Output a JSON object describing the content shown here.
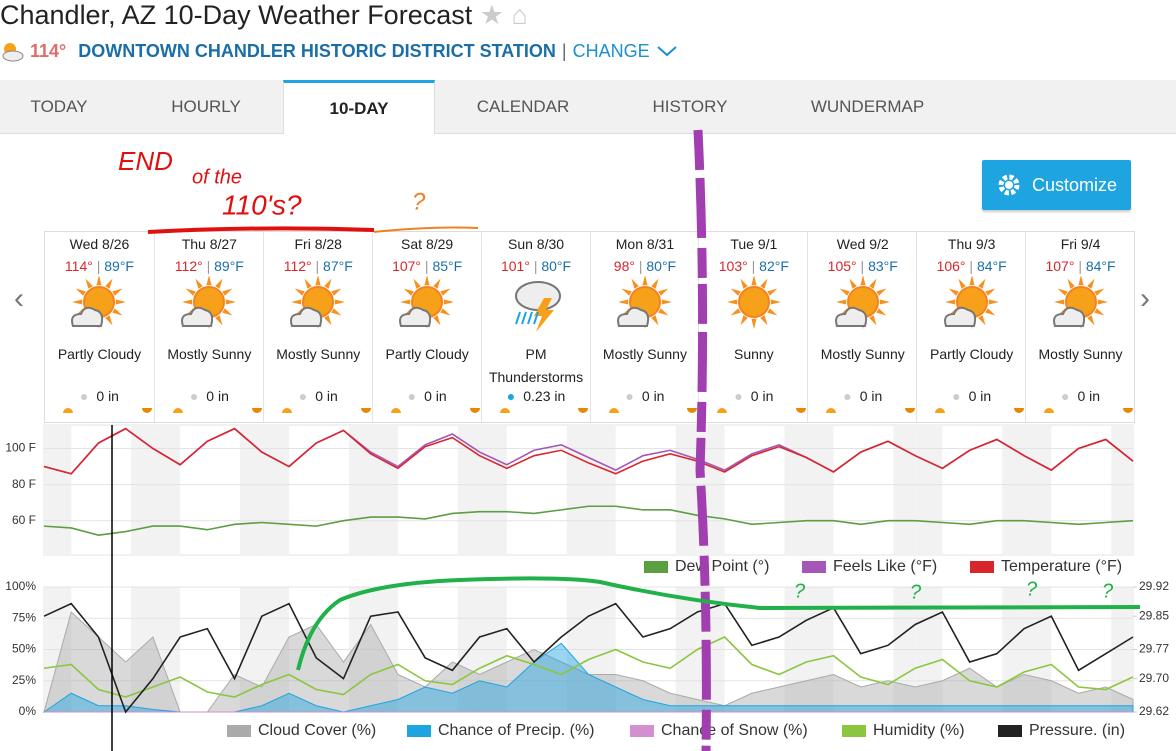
{
  "header": {
    "title": "Chandler, AZ 10-Day Weather Forecast",
    "current_temp": "114°",
    "station": "DOWNTOWN CHANDLER HISTORIC DISTRICT STATION",
    "separator": "|",
    "change": "CHANGE"
  },
  "tabs": [
    "TODAY",
    "HOURLY",
    "10-DAY",
    "CALENDAR",
    "HISTORY",
    "WUNDERMAP"
  ],
  "active_tab": 2,
  "customize": "Customize",
  "days": [
    {
      "day": "Wed 8/26",
      "high": "114°",
      "low": "89°F",
      "condition": "Partly Cloudy",
      "precip": "0 in"
    },
    {
      "day": "Thu 8/27",
      "high": "112°",
      "low": "89°F",
      "condition": "Mostly Sunny",
      "precip": "0 in"
    },
    {
      "day": "Fri 8/28",
      "high": "112°",
      "low": "87°F",
      "condition": "Mostly Sunny",
      "precip": "0 in"
    },
    {
      "day": "Sat 8/29",
      "high": "107°",
      "low": "85°F",
      "condition": "Partly Cloudy",
      "precip": "0 in"
    },
    {
      "day": "Sun 8/30",
      "high": "101°",
      "low": "80°F",
      "condition": "PM Thunderstorms",
      "precip": "0.23 in"
    },
    {
      "day": "Mon 8/31",
      "high": "98°",
      "low": "80°F",
      "condition": "Mostly Sunny",
      "precip": "0 in"
    },
    {
      "day": "Tue 9/1",
      "high": "103°",
      "low": "82°F",
      "condition": "Sunny",
      "precip": "0 in"
    },
    {
      "day": "Wed 9/2",
      "high": "105°",
      "low": "83°F",
      "condition": "Mostly Sunny",
      "precip": "0 in"
    },
    {
      "day": "Thu 9/3",
      "high": "106°",
      "low": "84°F",
      "condition": "Partly Cloudy",
      "precip": "0 in"
    },
    {
      "day": "Fri 9/4",
      "high": "107°",
      "low": "84°F",
      "condition": "Mostly Sunny",
      "precip": "0 in"
    }
  ],
  "annotations": [
    "END",
    "of the",
    "110's?",
    "?",
    "?",
    "?",
    "?",
    "?"
  ],
  "chart_data": [
    {
      "type": "line",
      "ylim": [
        41,
        113
      ],
      "yticks": [
        {
          "value": 60,
          "label": "60 F"
        },
        {
          "value": 80,
          "label": "80 F"
        },
        {
          "value": 100,
          "label": "100 F"
        }
      ],
      "series": [
        {
          "name": "Dew Point (°)",
          "color": "#5c9e42",
          "values": [
            57,
            56,
            52,
            54,
            57,
            57,
            55,
            58,
            59,
            58,
            57,
            60,
            62,
            62,
            61,
            64,
            65,
            65,
            64,
            66,
            68,
            68,
            66,
            66,
            63,
            61,
            58,
            59,
            60,
            60,
            58,
            60,
            60,
            59,
            58,
            60,
            60,
            59,
            58,
            59,
            60
          ]
        },
        {
          "name": "Feels Like (°F)",
          "color": "#a557b7",
          "values": [
            90,
            86,
            103,
            111,
            100,
            91,
            104,
            111,
            98,
            90,
            103,
            110,
            98,
            90,
            102,
            108,
            98,
            91,
            99,
            102,
            95,
            88,
            96,
            99,
            94,
            88,
            97,
            102,
            95,
            87,
            98,
            104,
            96,
            89,
            99,
            105,
            96,
            88,
            100,
            105,
            93
          ]
        },
        {
          "name": "Temperature (°F)",
          "color": "#d9262c",
          "values": [
            90,
            86,
            103,
            111,
            100,
            91,
            104,
            111,
            98,
            90,
            103,
            110,
            97,
            89,
            101,
            106,
            96,
            89,
            96,
            99,
            92,
            86,
            93,
            97,
            93,
            87,
            96,
            101,
            95,
            87,
            98,
            104,
            96,
            89,
            99,
            105,
            96,
            88,
            100,
            105,
            93
          ]
        }
      ]
    },
    {
      "type": "area",
      "ylim": [
        0,
        100
      ],
      "yticks": [
        {
          "value": 0,
          "label": "0%"
        },
        {
          "value": 25,
          "label": "25%"
        },
        {
          "value": 50,
          "label": "50%"
        },
        {
          "value": 75,
          "label": "75%"
        },
        {
          "value": 100,
          "label": "100%"
        }
      ],
      "y2lim": [
        29.62,
        29.92
      ],
      "y2ticks": [
        29.62,
        {
          "value": 29.7,
          "label": "29.70"
        },
        29.77,
        29.85,
        29.92
      ],
      "series": [
        {
          "name": "Cloud Cover (%)",
          "color": "#aaaaaa",
          "values": [
            0,
            80,
            60,
            40,
            60,
            0,
            0,
            30,
            20,
            60,
            70,
            40,
            70,
            30,
            20,
            40,
            30,
            40,
            50,
            40,
            30,
            30,
            25,
            15,
            10,
            5,
            15,
            20,
            25,
            30,
            20,
            25,
            20,
            25,
            35,
            20,
            30,
            25,
            15,
            20,
            10
          ]
        },
        {
          "name": "Chance of Precip. (%)",
          "color": "#1ea4e0",
          "values": [
            0,
            15,
            5,
            5,
            2,
            0,
            0,
            0,
            5,
            15,
            5,
            0,
            5,
            10,
            20,
            15,
            25,
            20,
            40,
            55,
            30,
            20,
            10,
            5,
            5,
            5,
            5,
            5,
            5,
            5,
            5,
            5,
            5,
            5,
            5,
            5,
            5,
            5,
            5,
            5,
            5
          ]
        },
        {
          "name": "Chance of Snow (%)",
          "color": "#d38fd0",
          "values": [
            0,
            0,
            0,
            0,
            0,
            0,
            0,
            0,
            0,
            0,
            0,
            0,
            0,
            0,
            0,
            0,
            0,
            0,
            0,
            0,
            0,
            0,
            0,
            0,
            0,
            0,
            0,
            0,
            0,
            0,
            0,
            0,
            0,
            0,
            0,
            0,
            0,
            0,
            0,
            0,
            0
          ]
        },
        {
          "name": "Humidity (%)",
          "color": "#8cc63f",
          "values": [
            35,
            38,
            18,
            12,
            20,
            28,
            16,
            12,
            22,
            30,
            18,
            14,
            30,
            38,
            25,
            22,
            35,
            45,
            38,
            30,
            42,
            50,
            40,
            35,
            50,
            60,
            38,
            30,
            40,
            45,
            28,
            22,
            35,
            42,
            25,
            20,
            32,
            38,
            20,
            18,
            28
          ]
        },
        {
          "name": "Pressure. (in)",
          "color": "#222222",
          "axis": "y2",
          "values": [
            29.85,
            29.88,
            29.8,
            29.62,
            29.7,
            29.8,
            29.82,
            29.7,
            29.85,
            29.88,
            29.75,
            29.7,
            29.85,
            29.86,
            29.75,
            29.72,
            29.8,
            29.82,
            29.74,
            29.8,
            29.85,
            29.88,
            29.8,
            29.82,
            29.86,
            29.88,
            29.78,
            29.8,
            29.84,
            29.87,
            29.76,
            29.78,
            29.83,
            29.86,
            29.74,
            29.76,
            29.82,
            29.85,
            29.72,
            29.76,
            29.8
          ]
        }
      ]
    }
  ]
}
